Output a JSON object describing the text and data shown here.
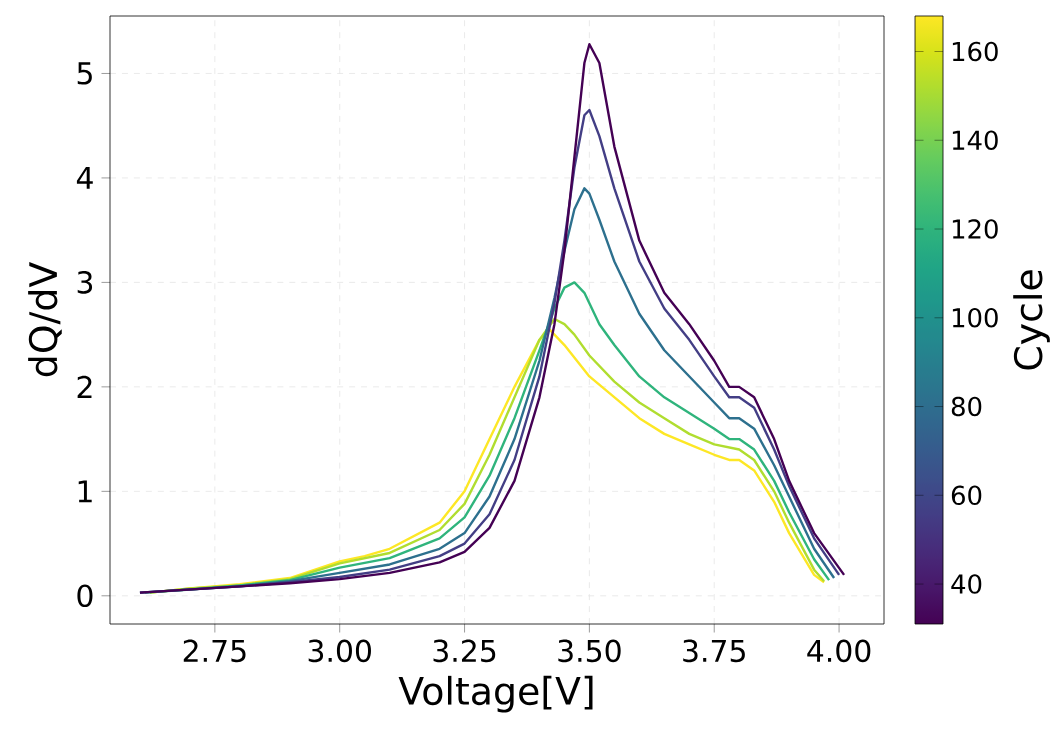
{
  "chart_data": {
    "type": "line",
    "xlabel": "Voltage[V]",
    "ylabel": "dQ/dV",
    "clabel": "Cycle",
    "xlim": [
      2.54,
      4.09
    ],
    "ylim": [
      -0.27,
      5.55
    ],
    "xticks": [
      {
        "value": 2.75,
        "label": "2.75"
      },
      {
        "value": 3.0,
        "label": "3.00"
      },
      {
        "value": 3.25,
        "label": "3.25"
      },
      {
        "value": 3.5,
        "label": "3.50"
      },
      {
        "value": 3.75,
        "label": "3.75"
      },
      {
        "value": 4.0,
        "label": "4.00"
      }
    ],
    "yticks": [
      0,
      1,
      2,
      3,
      4,
      5
    ],
    "clim": [
      31,
      168
    ],
    "cticks": [
      40,
      60,
      80,
      100,
      120,
      140,
      160
    ],
    "grid": true,
    "line_style": "solid",
    "marker": "none",
    "series": [
      {
        "color": "#fde725",
        "x": [
          2.62,
          2.7,
          2.8,
          2.9,
          3.0,
          3.05,
          3.1,
          3.2,
          3.25,
          3.3,
          3.35,
          3.4,
          3.42,
          3.45,
          3.5,
          3.55,
          3.6,
          3.65,
          3.7,
          3.75,
          3.78,
          3.8,
          3.83,
          3.87,
          3.9,
          3.95,
          3.97
        ],
        "values": [
          0.03,
          0.07,
          0.11,
          0.17,
          0.33,
          0.38,
          0.45,
          0.7,
          1.0,
          1.5,
          2.0,
          2.45,
          2.55,
          2.4,
          2.1,
          1.9,
          1.7,
          1.55,
          1.45,
          1.35,
          1.3,
          1.3,
          1.2,
          0.9,
          0.6,
          0.2,
          0.13
        ]
      },
      {
        "color": "#b0dd2f",
        "x": [
          2.62,
          2.7,
          2.8,
          2.9,
          3.0,
          3.1,
          3.2,
          3.25,
          3.3,
          3.35,
          3.4,
          3.43,
          3.45,
          3.47,
          3.5,
          3.55,
          3.6,
          3.65,
          3.7,
          3.75,
          3.8,
          3.83,
          3.87,
          3.9,
          3.95,
          3.97
        ],
        "values": [
          0.03,
          0.07,
          0.1,
          0.16,
          0.31,
          0.41,
          0.63,
          0.88,
          1.35,
          1.9,
          2.45,
          2.65,
          2.6,
          2.5,
          2.3,
          2.05,
          1.85,
          1.7,
          1.55,
          1.45,
          1.4,
          1.3,
          1.0,
          0.7,
          0.25,
          0.14
        ]
      },
      {
        "color": "#2fb47c",
        "x": [
          2.61,
          2.7,
          2.8,
          2.9,
          3.0,
          3.1,
          3.2,
          3.25,
          3.3,
          3.35,
          3.4,
          3.43,
          3.45,
          3.47,
          3.49,
          3.5,
          3.52,
          3.55,
          3.6,
          3.65,
          3.7,
          3.75,
          3.78,
          3.8,
          3.83,
          3.87,
          3.9,
          3.95,
          3.98
        ],
        "values": [
          0.03,
          0.06,
          0.1,
          0.15,
          0.27,
          0.36,
          0.55,
          0.75,
          1.15,
          1.7,
          2.35,
          2.75,
          2.95,
          3.0,
          2.9,
          2.8,
          2.6,
          2.4,
          2.1,
          1.9,
          1.75,
          1.6,
          1.5,
          1.5,
          1.4,
          1.1,
          0.8,
          0.35,
          0.15
        ]
      },
      {
        "color": "#2d708e",
        "x": [
          2.6,
          2.7,
          2.8,
          2.9,
          3.0,
          3.1,
          3.2,
          3.25,
          3.3,
          3.35,
          3.4,
          3.43,
          3.45,
          3.47,
          3.49,
          3.5,
          3.52,
          3.55,
          3.6,
          3.65,
          3.7,
          3.75,
          3.78,
          3.8,
          3.83,
          3.87,
          3.9,
          3.95,
          3.99
        ],
        "values": [
          0.03,
          0.06,
          0.09,
          0.14,
          0.22,
          0.3,
          0.45,
          0.6,
          0.95,
          1.5,
          2.25,
          2.85,
          3.3,
          3.7,
          3.9,
          3.85,
          3.6,
          3.2,
          2.7,
          2.35,
          2.1,
          1.85,
          1.7,
          1.7,
          1.6,
          1.25,
          0.95,
          0.45,
          0.17
        ]
      },
      {
        "color": "#433e85",
        "x": [
          2.6,
          2.7,
          2.8,
          2.9,
          3.0,
          3.1,
          3.2,
          3.25,
          3.3,
          3.35,
          3.4,
          3.43,
          3.45,
          3.47,
          3.49,
          3.5,
          3.52,
          3.55,
          3.6,
          3.65,
          3.7,
          3.75,
          3.78,
          3.8,
          3.83,
          3.87,
          3.9,
          3.95,
          4.0
        ],
        "values": [
          0.03,
          0.06,
          0.09,
          0.13,
          0.18,
          0.25,
          0.38,
          0.5,
          0.78,
          1.3,
          2.1,
          2.8,
          3.4,
          4.1,
          4.6,
          4.65,
          4.4,
          3.9,
          3.2,
          2.75,
          2.45,
          2.1,
          1.9,
          1.9,
          1.8,
          1.4,
          1.05,
          0.55,
          0.2
        ]
      },
      {
        "color": "#440154",
        "x": [
          2.6,
          2.7,
          2.8,
          2.9,
          3.0,
          3.1,
          3.2,
          3.25,
          3.3,
          3.35,
          3.4,
          3.43,
          3.45,
          3.47,
          3.49,
          3.5,
          3.52,
          3.55,
          3.6,
          3.65,
          3.7,
          3.75,
          3.78,
          3.8,
          3.83,
          3.87,
          3.9,
          3.95,
          4.01
        ],
        "values": [
          0.03,
          0.06,
          0.09,
          0.12,
          0.16,
          0.22,
          0.32,
          0.42,
          0.65,
          1.1,
          1.9,
          2.6,
          3.3,
          4.2,
          5.1,
          5.28,
          5.1,
          4.3,
          3.4,
          2.9,
          2.6,
          2.25,
          2.0,
          2.0,
          1.9,
          1.5,
          1.1,
          0.6,
          0.2
        ]
      }
    ]
  }
}
